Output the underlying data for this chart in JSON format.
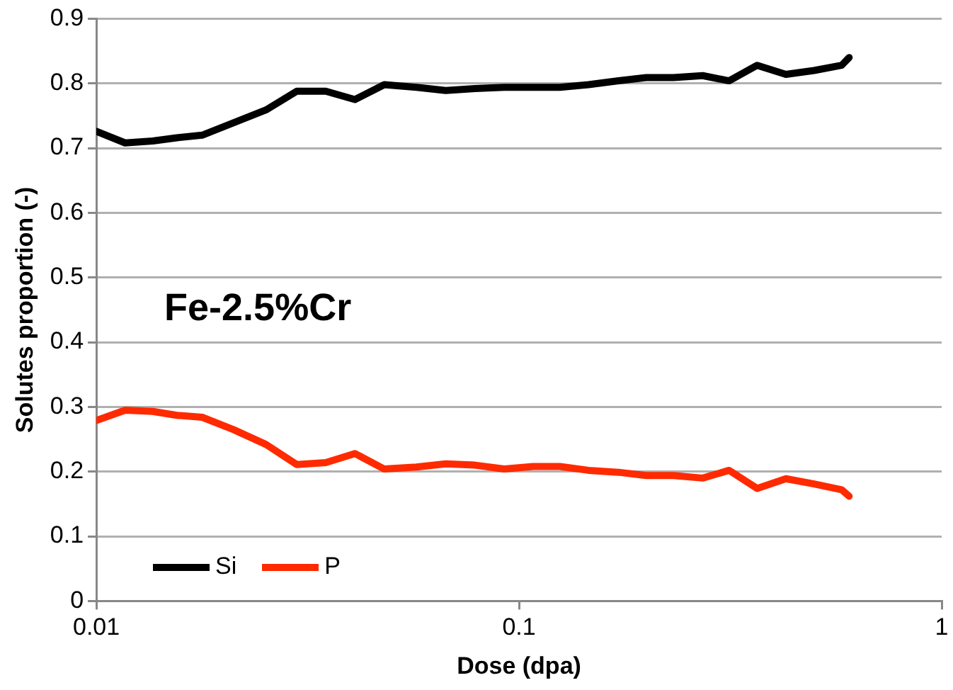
{
  "chart_data": {
    "type": "line",
    "xlabel": "Dose (dpa)",
    "ylabel": "Solutes proportion (-)",
    "annotations": [
      "Fe-2.5%Cr"
    ],
    "x": [
      0.01,
      0.0117,
      0.0136,
      0.0155,
      0.0178,
      0.0211,
      0.0252,
      0.0298,
      0.0349,
      0.0409,
      0.048,
      0.0572,
      0.0671,
      0.0787,
      0.0923,
      0.108,
      0.125,
      0.146,
      0.172,
      0.2,
      0.232,
      0.272,
      0.314,
      0.366,
      0.428,
      0.499,
      0.58,
      0.604
    ],
    "series": [
      {
        "name": "Si",
        "color": "#000000",
        "values": [
          0.726,
          0.708,
          0.711,
          0.716,
          0.72,
          0.739,
          0.759,
          0.788,
          0.788,
          0.775,
          0.798,
          0.794,
          0.789,
          0.792,
          0.794,
          0.794,
          0.794,
          0.798,
          0.804,
          0.809,
          0.809,
          0.812,
          0.804,
          0.828,
          0.814,
          0.82,
          0.828,
          0.84
        ]
      },
      {
        "name": "P",
        "color": "#ff2a00",
        "values": [
          0.279,
          0.295,
          0.293,
          0.287,
          0.284,
          0.265,
          0.242,
          0.211,
          0.214,
          0.228,
          0.204,
          0.207,
          0.212,
          0.21,
          0.204,
          0.208,
          0.208,
          0.202,
          0.199,
          0.194,
          0.194,
          0.19,
          0.202,
          0.174,
          0.189,
          0.181,
          0.172,
          0.162
        ]
      }
    ],
    "log": "x",
    "xlim": [
      0.01,
      1
    ],
    "xticks": [
      0.01,
      0.1,
      1
    ],
    "ylim": [
      0,
      0.9
    ],
    "yticks": [
      0,
      0.1,
      0.2,
      0.3,
      0.4,
      0.5,
      0.6,
      0.7,
      0.8,
      0.9
    ],
    "grid": "y",
    "legend": "bottom left",
    "line_style": "solid"
  }
}
